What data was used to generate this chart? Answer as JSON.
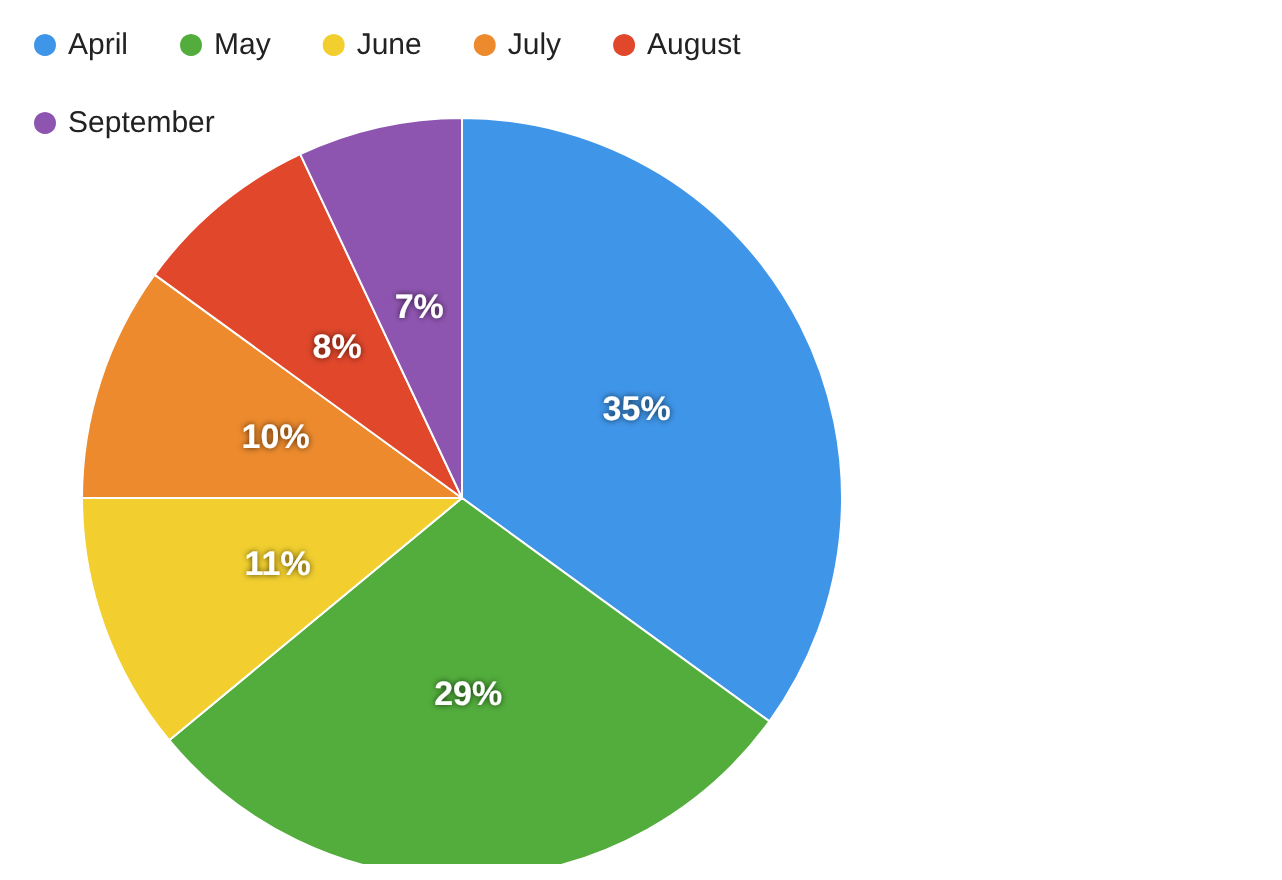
{
  "chart_data": {
    "type": "pie",
    "categories": [
      "April",
      "May",
      "June",
      "July",
      "August",
      "September"
    ],
    "values": [
      35,
      29,
      11,
      10,
      8,
      7
    ],
    "value_labels": [
      "35%",
      "29%",
      "11%",
      "10%",
      "8%",
      "7%"
    ],
    "colors": [
      "#3f95e8",
      "#52ad3c",
      "#f2cf2f",
      "#ec8a2d",
      "#e0472b",
      "#8e55b0"
    ],
    "legend": "top left"
  }
}
